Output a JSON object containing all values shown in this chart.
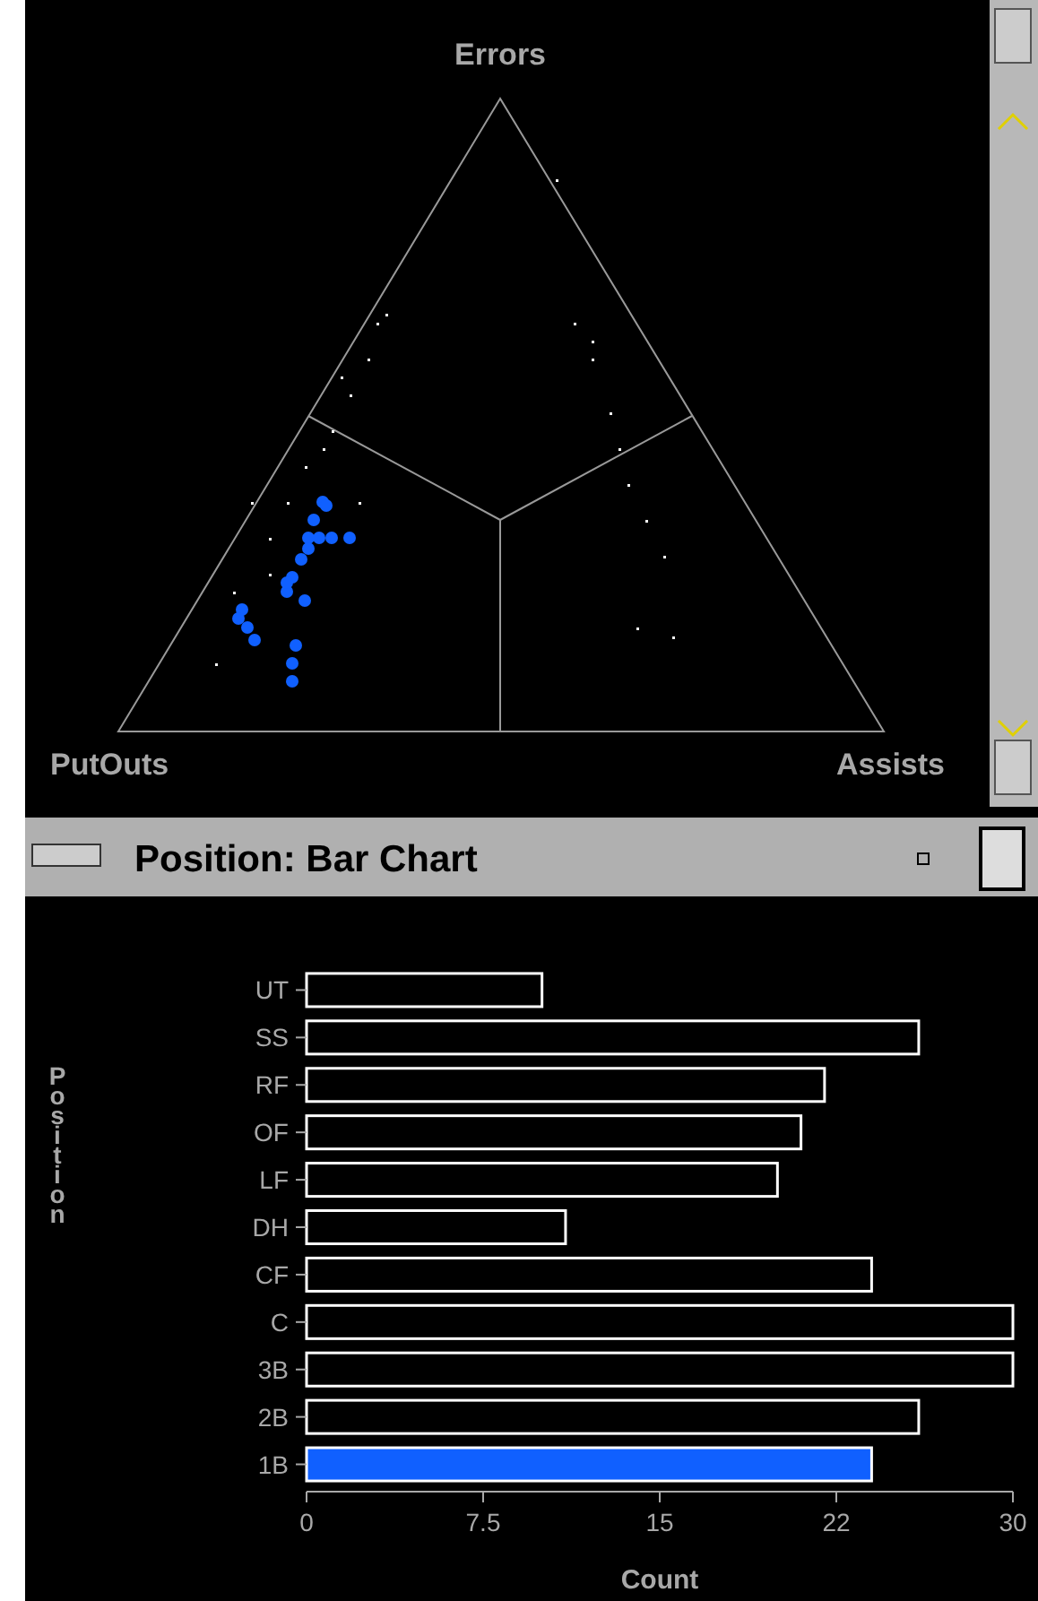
{
  "chart_data": [
    {
      "type": "other",
      "annotations": [
        "Errors",
        "PutOuts",
        "Assists"
      ]
    },
    {
      "type": "bar",
      "title": "Position: Bar Chart",
      "orientation": "horizontal",
      "xlabel": "Count",
      "ylabel": "Position",
      "categories": [
        "UT",
        "SS",
        "RF",
        "OF",
        "LF",
        "DH",
        "CF",
        "C",
        "3B",
        "2B",
        "1B"
      ],
      "values": [
        10,
        26,
        22,
        21,
        20,
        11,
        24,
        30,
        30,
        26,
        24
      ],
      "colors": [
        "#000000",
        "#000000",
        "#000000",
        "#000000",
        "#000000",
        "#000000",
        "#000000",
        "#000000",
        "#000000",
        "#000000",
        "#1060ff"
      ],
      "xlim": [
        0,
        30
      ],
      "xticks": [
        0,
        7.5,
        15,
        {
          "value": 22.5,
          "label": "22"
        },
        30
      ],
      "grid": false
    }
  ]
}
